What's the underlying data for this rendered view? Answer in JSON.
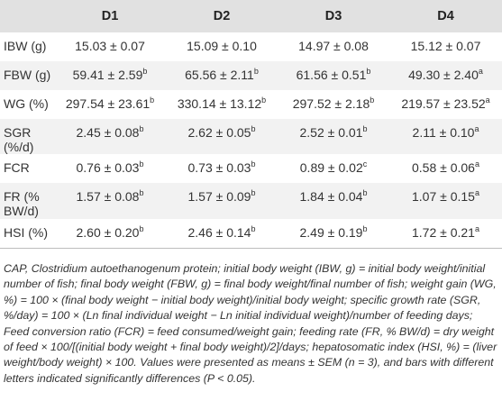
{
  "table": {
    "headers": [
      "",
      "D1",
      "D2",
      "D3",
      "D4"
    ],
    "rows": [
      {
        "label": "IBW (g)",
        "cells": [
          {
            "value": "15.03 ± 0.07",
            "sup": ""
          },
          {
            "value": "15.09 ± 0.10",
            "sup": ""
          },
          {
            "value": "14.97 ± 0.08",
            "sup": ""
          },
          {
            "value": "15.12 ± 0.07",
            "sup": ""
          }
        ]
      },
      {
        "label": "FBW (g)",
        "cells": [
          {
            "value": "59.41 ± 2.59",
            "sup": "b"
          },
          {
            "value": "65.56 ± 2.11",
            "sup": "b"
          },
          {
            "value": "61.56 ± 0.51",
            "sup": "b"
          },
          {
            "value": "49.30 ± 2.40",
            "sup": "a"
          }
        ]
      },
      {
        "label": "WG (%)",
        "cells": [
          {
            "value": "297.54 ± 23.61",
            "sup": "b"
          },
          {
            "value": "330.14 ± 13.12",
            "sup": "b"
          },
          {
            "value": "297.52 ± 2.18",
            "sup": "b"
          },
          {
            "value": "219.57 ± 23.52",
            "sup": "a"
          }
        ]
      },
      {
        "label": "SGR (%/d)",
        "cells": [
          {
            "value": "2.45 ± 0.08",
            "sup": "b"
          },
          {
            "value": "2.62 ± 0.05",
            "sup": "b"
          },
          {
            "value": "2.52 ± 0.01",
            "sup": "b"
          },
          {
            "value": "2.11 ± 0.10",
            "sup": "a"
          }
        ]
      },
      {
        "label": "FCR",
        "cells": [
          {
            "value": "0.76 ± 0.03",
            "sup": "b"
          },
          {
            "value": "0.73 ± 0.03",
            "sup": "b"
          },
          {
            "value": "0.89 ± 0.02",
            "sup": "c"
          },
          {
            "value": "0.58 ± 0.06",
            "sup": "a"
          }
        ]
      },
      {
        "label_lines": [
          "FR (%",
          "BW/d)"
        ],
        "cells": [
          {
            "value": "1.57 ± 0.08",
            "sup": "b"
          },
          {
            "value": "1.57 ± 0.09",
            "sup": "b"
          },
          {
            "value": "1.84 ± 0.04",
            "sup": "b"
          },
          {
            "value": "1.07 ± 0.15",
            "sup": "a"
          }
        ]
      },
      {
        "label": "HSI (%)",
        "cells": [
          {
            "value": "2.60 ± 0.20",
            "sup": "b"
          },
          {
            "value": "2.46 ± 0.14",
            "sup": "b"
          },
          {
            "value": "2.49 ± 0.19",
            "sup": "b"
          },
          {
            "value": "1.72 ± 0.21",
            "sup": "a"
          }
        ]
      }
    ]
  },
  "footnote": "CAP, Clostridium autoethanogenum protein; initial body weight (IBW, g) = initial body weight/initial number of fish; final body weight (FBW, g) = final body weight/final number of fish; weight gain (WG, %) = 100 × (final body weight − initial body weight)/initial body weight; specific growth rate (SGR, %/day) = 100 × (Ln final individual weight − Ln initial individual weight)/number of feeding days; Feed conversion ratio (FCR) = feed consumed/weight gain; feeding rate (FR, % BW/d) = dry weight of feed × 100/[(initial body weight + final body weight)/2]/days; hepatosomatic index (HSI, %) = (liver weight/body weight) × 100. Values were presented as means ± SEM (n = 3), and bars with different letters indicated significantly differences (P < 0.05)."
}
